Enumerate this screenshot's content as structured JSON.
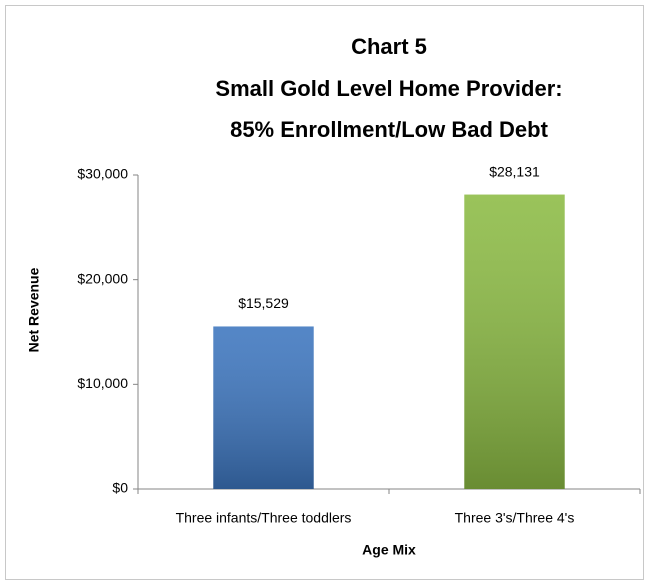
{
  "chart_data": {
    "type": "bar",
    "title": [
      "Chart 5",
      "Small Gold Level Home Provider:",
      "85% Enrollment/Low Bad Debt"
    ],
    "x_label": "Age Mix",
    "y_label": "Net Revenue",
    "categories": [
      "Three infants/Three toddlers",
      "Three 3's/Three 4's"
    ],
    "values": [
      15529,
      28131
    ],
    "value_labels": [
      "$15,529",
      "$28,131"
    ],
    "colors": [
      "#3d76bf",
      "#8cbb44"
    ],
    "ylim": [
      0,
      30000
    ],
    "yticks": [
      {
        "value": 0,
        "label": "$0"
      },
      {
        "value": 10000,
        "label": "$10,000"
      },
      {
        "value": 20000,
        "label": "$20,000"
      },
      {
        "value": 30000,
        "label": "$30,000"
      }
    ],
    "grid": false
  }
}
